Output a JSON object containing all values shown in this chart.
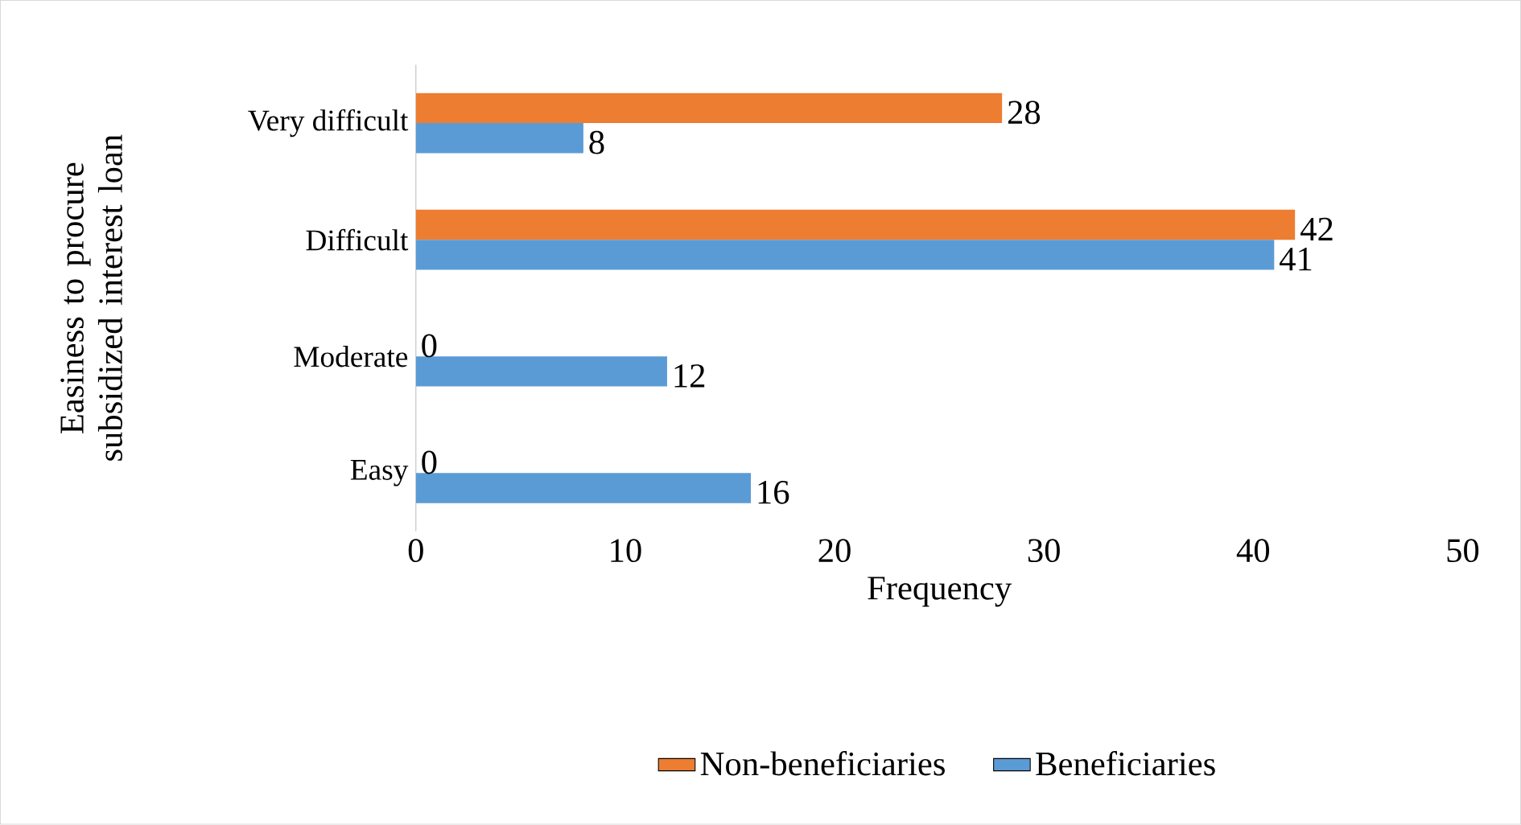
{
  "chart_data": {
    "type": "bar",
    "orientation": "horizontal",
    "xlabel": "Frequency",
    "ylabel": "Easiness to procure subsidized interest loan",
    "categories": [
      "Very difficult",
      "Difficult",
      "Moderate",
      "Easy"
    ],
    "series": [
      {
        "name": "Non-beneficiaries",
        "color": "#ed7d31",
        "values": [
          28,
          42,
          0,
          0
        ]
      },
      {
        "name": "Beneficiaries",
        "color": "#5b9bd5",
        "values": [
          8,
          41,
          12,
          16
        ]
      }
    ],
    "xlim": [
      0,
      50
    ],
    "xticks": [
      0,
      10,
      20,
      30,
      40,
      50
    ],
    "data_labels": true,
    "legend": "bottom"
  }
}
